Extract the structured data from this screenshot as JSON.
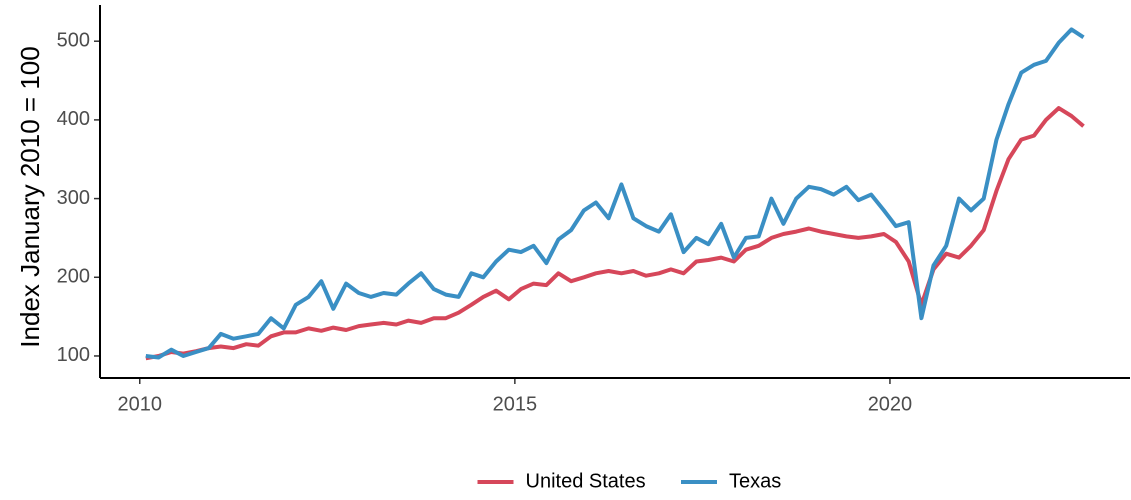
{
  "chart_data": {
    "type": "line",
    "ylabel": "Index January 2010 = 100",
    "x": [
      2010.08,
      2010.25,
      2010.42,
      2010.58,
      2010.75,
      2010.92,
      2011.08,
      2011.25,
      2011.42,
      2011.58,
      2011.75,
      2011.92,
      2012.08,
      2012.25,
      2012.42,
      2012.58,
      2012.75,
      2012.92,
      2013.08,
      2013.25,
      2013.42,
      2013.58,
      2013.75,
      2013.92,
      2014.08,
      2014.25,
      2014.42,
      2014.58,
      2014.75,
      2014.92,
      2015.08,
      2015.25,
      2015.42,
      2015.58,
      2015.75,
      2015.92,
      2016.08,
      2016.25,
      2016.42,
      2016.58,
      2016.75,
      2016.92,
      2017.08,
      2017.25,
      2017.42,
      2017.58,
      2017.75,
      2017.92,
      2018.08,
      2018.25,
      2018.42,
      2018.58,
      2018.75,
      2018.92,
      2019.08,
      2019.25,
      2019.42,
      2019.58,
      2019.75,
      2019.92,
      2020.08,
      2020.25,
      2020.42,
      2020.58,
      2020.75,
      2020.92,
      2021.08,
      2021.25,
      2021.42,
      2021.58,
      2021.75,
      2021.92,
      2022.08,
      2022.25,
      2022.42,
      2022.58
    ],
    "series": [
      {
        "name": "United States",
        "color": "#d6475a",
        "values": [
          97,
          100,
          105,
          103,
          106,
          110,
          112,
          110,
          115,
          113,
          125,
          130,
          130,
          135,
          132,
          136,
          133,
          138,
          140,
          142,
          140,
          145,
          142,
          148,
          148,
          155,
          165,
          175,
          183,
          172,
          185,
          192,
          190,
          205,
          195,
          200,
          205,
          208,
          205,
          208,
          202,
          205,
          210,
          205,
          220,
          222,
          225,
          220,
          235,
          240,
          250,
          255,
          258,
          262,
          258,
          255,
          252,
          250,
          252,
          255,
          245,
          220,
          165,
          210,
          230,
          225,
          240,
          260,
          310,
          350,
          375,
          380,
          400,
          415,
          405,
          392
        ]
      },
      {
        "name": "Texas",
        "color": "#3a8fc4",
        "values": [
          100,
          98,
          108,
          100,
          105,
          110,
          128,
          122,
          125,
          128,
          148,
          135,
          165,
          175,
          195,
          160,
          192,
          180,
          175,
          180,
          178,
          192,
          205,
          185,
          178,
          175,
          205,
          200,
          220,
          235,
          232,
          240,
          218,
          248,
          260,
          285,
          295,
          275,
          318,
          275,
          265,
          258,
          280,
          232,
          250,
          242,
          268,
          225,
          250,
          252,
          300,
          268,
          300,
          315,
          312,
          305,
          315,
          298,
          305,
          285,
          265,
          270,
          148,
          215,
          240,
          300,
          285,
          300,
          375,
          420,
          460,
          470,
          475,
          498,
          515,
          505
        ]
      }
    ],
    "xlim": [
      2009.47,
      2023.2
    ],
    "xticks": [
      2010,
      2015,
      2020
    ],
    "ylim": [
      72,
      546
    ],
    "yticks": [
      100,
      200,
      300,
      400,
      500
    ],
    "grid": false,
    "legend": "bottom"
  }
}
